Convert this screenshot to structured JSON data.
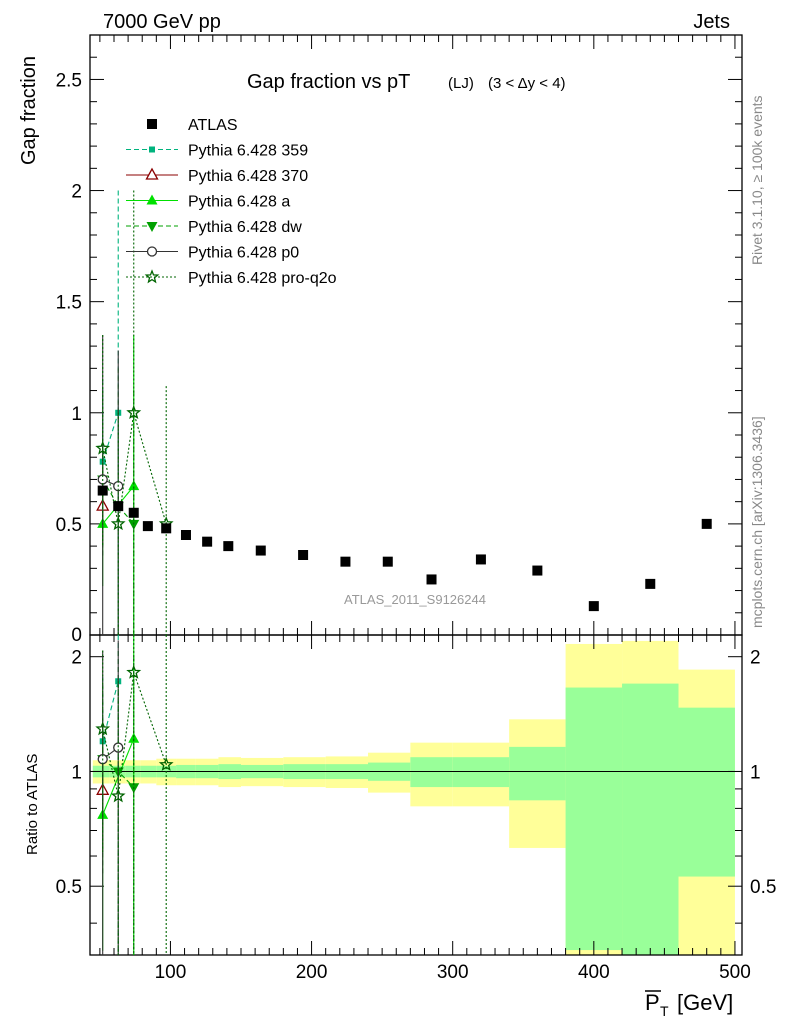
{
  "header": {
    "left": "7000 GeV pp",
    "right": "Jets",
    "title_main": "Gap fraction vs pT",
    "title_sub": "(LJ)",
    "title_range": "(3 < Δy < 4)",
    "watermark": "ATLAS_2011_S9126244",
    "side_top": "Rivet 3.1.10, ≥ 100k events",
    "side_bottom": "mcplots.cern.ch [arXiv:1306.3436]"
  },
  "colors": {
    "data": "#000000",
    "p359": "#00b37d",
    "p370": "#8b0000",
    "pa": "#00e000",
    "pdw": "#00a000",
    "pp0": "#333333",
    "pq2o": "#006400",
    "band_inner": "#99ff99",
    "band_outer": "#ffff99"
  },
  "chart_data": {
    "type": "scatter",
    "xlabel": "P̅T [GeV]",
    "xlabel_main": "P",
    "xlabel_sub": "T",
    "xlabel_unit": "[GeV]",
    "ylabel_main": "Gap fraction",
    "ylabel_ratio": "Ratio to ATLAS",
    "xlim": [
      43,
      505
    ],
    "ylim_main": [
      0,
      2.7
    ],
    "ylim_ratio": [
      0.33,
      2.28
    ],
    "x_ticks": [
      "100",
      "200",
      "300",
      "400",
      "500"
    ],
    "y_ticks_main": [
      "0.5",
      "1",
      "1.5",
      "2",
      "2.5"
    ],
    "y_ticks_main_bottom": "0",
    "y_ticks_ratio": [
      "0.5",
      "1",
      "2"
    ],
    "data": {
      "name": "ATLAS",
      "x": [
        52,
        63,
        74,
        84,
        97,
        111,
        126,
        141,
        164,
        194,
        224,
        254,
        285,
        320,
        360,
        400,
        440,
        480
      ],
      "y": [
        0.65,
        0.58,
        0.55,
        0.49,
        0.48,
        0.45,
        0.42,
        0.4,
        0.38,
        0.36,
        0.33,
        0.33,
        0.25,
        0.34,
        0.29,
        0.13,
        0.23,
        0.5
      ]
    },
    "bins": [
      {
        "lo": 45,
        "hi": 57,
        "inner": 0.035,
        "outer": 0.07
      },
      {
        "lo": 57,
        "hi": 68,
        "inner": 0.035,
        "outer": 0.07
      },
      {
        "lo": 68,
        "hi": 79,
        "inner": 0.035,
        "outer": 0.07
      },
      {
        "lo": 79,
        "hi": 90,
        "inner": 0.035,
        "outer": 0.07
      },
      {
        "lo": 90,
        "hi": 104,
        "inner": 0.035,
        "outer": 0.08
      },
      {
        "lo": 104,
        "hi": 118,
        "inner": 0.04,
        "outer": 0.08
      },
      {
        "lo": 118,
        "hi": 134,
        "inner": 0.04,
        "outer": 0.08
      },
      {
        "lo": 134,
        "hi": 150,
        "inner": 0.045,
        "outer": 0.09
      },
      {
        "lo": 150,
        "hi": 180,
        "inner": 0.04,
        "outer": 0.085
      },
      {
        "lo": 180,
        "hi": 210,
        "inner": 0.045,
        "outer": 0.09
      },
      {
        "lo": 210,
        "hi": 240,
        "inner": 0.045,
        "outer": 0.095
      },
      {
        "lo": 240,
        "hi": 270,
        "inner": 0.055,
        "outer": 0.12
      },
      {
        "lo": 270,
        "hi": 300,
        "inner": 0.09,
        "outer": 0.19
      },
      {
        "lo": 300,
        "hi": 340,
        "inner": 0.09,
        "outer": 0.19
      },
      {
        "lo": 340,
        "hi": 380,
        "inner": 0.16,
        "outer": 0.37
      },
      {
        "lo": 380,
        "hi": 420,
        "inner": 0.66,
        "outer": 1.16
      },
      {
        "lo": 420,
        "hi": 460,
        "inner": 0.7,
        "outer": 1.2
      },
      {
        "lo": 460,
        "hi": 500,
        "inner": 0.47,
        "outer": 0.85
      }
    ],
    "series": [
      {
        "name": "Pythia 6.428 359",
        "color_key": "p359",
        "marker": "square-small",
        "dash": "5,3",
        "x": [
          52,
          63
        ],
        "y": [
          0.78,
          1.0
        ],
        "lo": [
          0.45,
          0.0
        ],
        "hi": [
          1.15,
          2.0
        ]
      },
      {
        "name": "Pythia 6.428 370",
        "color_key": "p370",
        "marker": "triangle-open",
        "dash": "",
        "x": [
          52
        ],
        "y": [
          0.58
        ],
        "lo": [
          0.4
        ],
        "hi": [
          0.75
        ]
      },
      {
        "name": "Pythia 6.428 a",
        "color_key": "pa",
        "marker": "triangle",
        "dash": "",
        "x": [
          52,
          74
        ],
        "y": [
          0.5,
          0.67
        ],
        "lo": [
          0.22,
          0.0
        ],
        "hi": [
          0.8,
          1.35
        ]
      },
      {
        "name": "Pythia 6.428 dw",
        "color_key": "pdw",
        "marker": "triangle-down",
        "dash": "5,3",
        "x": [
          52,
          63,
          74
        ],
        "y": [
          0.7,
          0.58,
          0.5
        ],
        "lo": [
          0.35,
          0.0,
          0.0
        ],
        "hi": [
          1.1,
          1.2,
          1.1
        ]
      },
      {
        "name": "Pythia 6.428 p0",
        "color_key": "pp0",
        "marker": "circle-open",
        "dash": "",
        "x": [
          52,
          63
        ],
        "y": [
          0.7,
          0.67
        ],
        "lo": [
          0.0,
          0.0
        ],
        "hi": [
          1.35,
          1.28
        ]
      },
      {
        "name": "Pythia 6.428 pro-q2o",
        "color_key": "pq2o",
        "marker": "star",
        "dash": "2,2",
        "x": [
          52,
          63,
          74,
          97
        ],
        "y": [
          0.84,
          0.5,
          1.0,
          0.5
        ],
        "lo": [
          0.4,
          0.0,
          0.0,
          0.0
        ],
        "hi": [
          1.35,
          1.0,
          2.0,
          1.12
        ]
      }
    ]
  }
}
